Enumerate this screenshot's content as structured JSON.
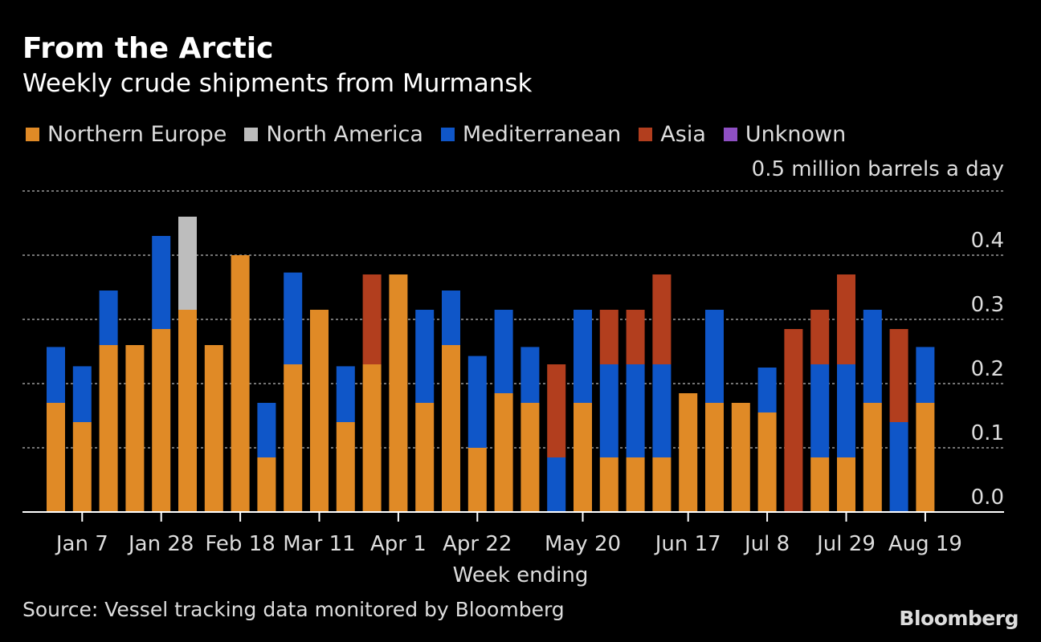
{
  "title": "From the Arctic",
  "subtitle": "Weekly crude shipments from Murmansk",
  "source": "Source: Vessel tracking data monitored by Bloomberg",
  "brand": "Bloomberg",
  "colors": {
    "background": "#000000",
    "Northern Europe": "#E08A26",
    "North America": "#BDBDBD",
    "Mediterranean": "#0F56C8",
    "Asia": "#B23E1E",
    "Unknown": "#8E4FC3"
  },
  "chart_data": {
    "type": "bar",
    "stacked": true,
    "title": "From the Arctic",
    "subtitle": "Weekly crude shipments from Murmansk",
    "xlabel": "Week ending",
    "ylabel": "0.5 million barrels a day",
    "ylim": [
      0,
      0.5
    ],
    "yticks": [
      0.0,
      0.1,
      0.2,
      0.3,
      0.4
    ],
    "grid": true,
    "legend_position": "top",
    "x_tick_labels": [
      "Jan 7",
      "Jan 28",
      "Feb 18",
      "Mar 11",
      "Apr 1",
      "Apr 22",
      "May 20",
      "Jun 17",
      "Jul 8",
      "Jul 29",
      "Aug 19"
    ],
    "x_tick_indices": [
      1,
      4,
      7,
      10,
      13,
      16,
      20,
      24,
      27,
      30,
      33
    ],
    "n_bars": 34,
    "series": [
      {
        "name": "Northern Europe",
        "values": [
          0.17,
          0.14,
          0.26,
          0.26,
          0.285,
          0.315,
          0.26,
          0.4,
          0.085,
          0.23,
          0.315,
          0.14,
          0.23,
          0.37,
          0.17,
          0.26,
          0.1,
          0.185,
          0.17,
          0.0,
          0.17,
          0.085,
          0.085,
          0.085,
          0.185,
          0.17,
          0.17,
          0.155,
          0.0,
          0.085,
          0.085,
          0.17,
          0.0,
          0.17
        ]
      },
      {
        "name": "North America",
        "values": [
          0,
          0,
          0,
          0,
          0,
          0.145,
          0,
          0,
          0,
          0,
          0,
          0,
          0,
          0,
          0,
          0,
          0,
          0,
          0,
          0,
          0,
          0,
          0,
          0,
          0,
          0,
          0,
          0,
          0,
          0,
          0,
          0,
          0,
          0
        ]
      },
      {
        "name": "Mediterranean",
        "values": [
          0.087,
          0.087,
          0.085,
          0,
          0.145,
          0,
          0,
          0,
          0.085,
          0.143,
          0,
          0.087,
          0,
          0,
          0.145,
          0.085,
          0.143,
          0.13,
          0.087,
          0.085,
          0.145,
          0.145,
          0.145,
          0.145,
          0,
          0.145,
          0,
          0.07,
          0,
          0.145,
          0.145,
          0.145,
          0.14,
          0.087
        ]
      },
      {
        "name": "Asia",
        "values": [
          0,
          0,
          0,
          0,
          0,
          0,
          0,
          0,
          0,
          0,
          0,
          0,
          0.14,
          0,
          0,
          0,
          0,
          0,
          0,
          0.145,
          0,
          0.085,
          0.085,
          0.14,
          0,
          0,
          0,
          0,
          0.285,
          0.085,
          0.14,
          0,
          0.145,
          0
        ]
      },
      {
        "name": "Unknown",
        "values": [
          0,
          0,
          0,
          0,
          0,
          0,
          0,
          0,
          0,
          0,
          0,
          0,
          0,
          0,
          0,
          0,
          0,
          0,
          0,
          0,
          0,
          0,
          0,
          0,
          0,
          0,
          0,
          0,
          0,
          0,
          0,
          0,
          0,
          0
        ]
      }
    ]
  }
}
